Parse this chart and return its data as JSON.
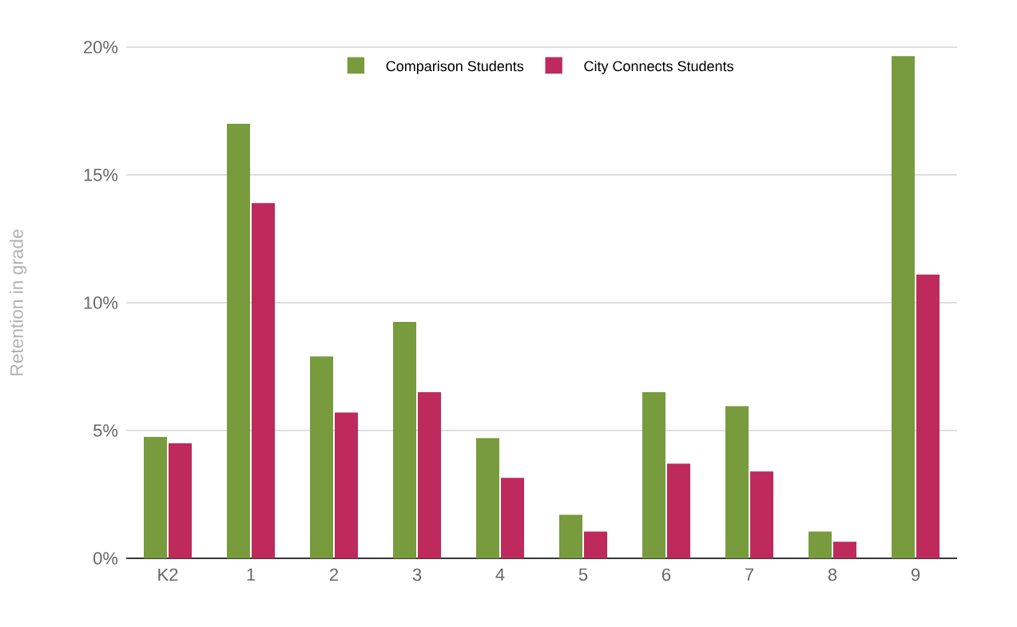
{
  "chart_data": {
    "type": "bar",
    "ylabel": "Retention in grade",
    "categories": [
      "K2",
      "1",
      "2",
      "3",
      "4",
      "5",
      "6",
      "7",
      "8",
      "9"
    ],
    "series": [
      {
        "name": "Comparison Students",
        "color": "#789b3d",
        "values": [
          4.75,
          17.0,
          7.9,
          9.25,
          4.7,
          1.7,
          6.5,
          5.95,
          1.05,
          19.65
        ]
      },
      {
        "name": "City Connects Students",
        "color": "#bd2a5b",
        "values": [
          4.5,
          13.9,
          5.7,
          6.5,
          3.15,
          1.05,
          3.7,
          3.4,
          0.65,
          11.1
        ]
      }
    ],
    "ylim": [
      0,
      20
    ],
    "yticks": [
      {
        "value": 0,
        "label": "0%"
      },
      {
        "value": 5,
        "label": "5%"
      },
      {
        "value": 10,
        "label": "10%"
      },
      {
        "value": 15,
        "label": "15%"
      },
      {
        "value": 20,
        "label": "20%"
      }
    ],
    "grid": "y",
    "legend": "top"
  }
}
